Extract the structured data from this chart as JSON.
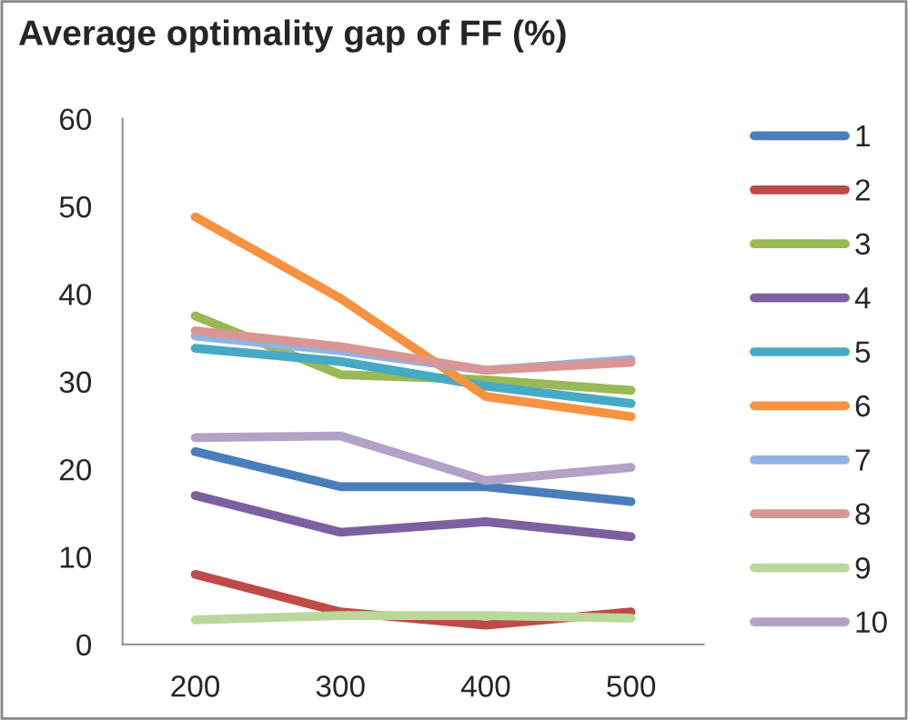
{
  "chart_data": {
    "type": "line",
    "title": "Average optimality gap of FF (%)",
    "categories": [
      "200",
      "300",
      "400",
      "500"
    ],
    "ylim": [
      0,
      60
    ],
    "yticks": [
      0,
      10,
      20,
      30,
      40,
      50,
      60
    ],
    "grid": false,
    "legend": "right",
    "series": [
      {
        "name": "1",
        "color": "#4a7ebb",
        "values": [
          22,
          18,
          18,
          16.3
        ]
      },
      {
        "name": "2",
        "color": "#be4b48",
        "values": [
          8,
          3.7,
          2.2,
          3.7
        ]
      },
      {
        "name": "3",
        "color": "#98b954",
        "values": [
          37.5,
          30.8,
          30.2,
          29
        ]
      },
      {
        "name": "4",
        "color": "#7d60a0",
        "values": [
          17,
          12.8,
          14,
          12.3
        ]
      },
      {
        "name": "5",
        "color": "#46aac5",
        "values": [
          33.8,
          32.3,
          29.5,
          27.5
        ]
      },
      {
        "name": "6",
        "color": "#f69240",
        "values": [
          48.8,
          39.5,
          28.3,
          26
        ]
      },
      {
        "name": "7",
        "color": "#8eb4e3",
        "values": [
          35.2,
          33.5,
          31.3,
          32.5
        ]
      },
      {
        "name": "8",
        "color": "#d99694",
        "values": [
          35.8,
          34,
          31.3,
          32.2
        ]
      },
      {
        "name": "9",
        "color": "#b9d89b",
        "values": [
          2.8,
          3.3,
          3.3,
          3
        ]
      },
      {
        "name": "10",
        "color": "#b2a2c7",
        "values": [
          23.6,
          23.8,
          18.7,
          20.2
        ]
      }
    ]
  }
}
